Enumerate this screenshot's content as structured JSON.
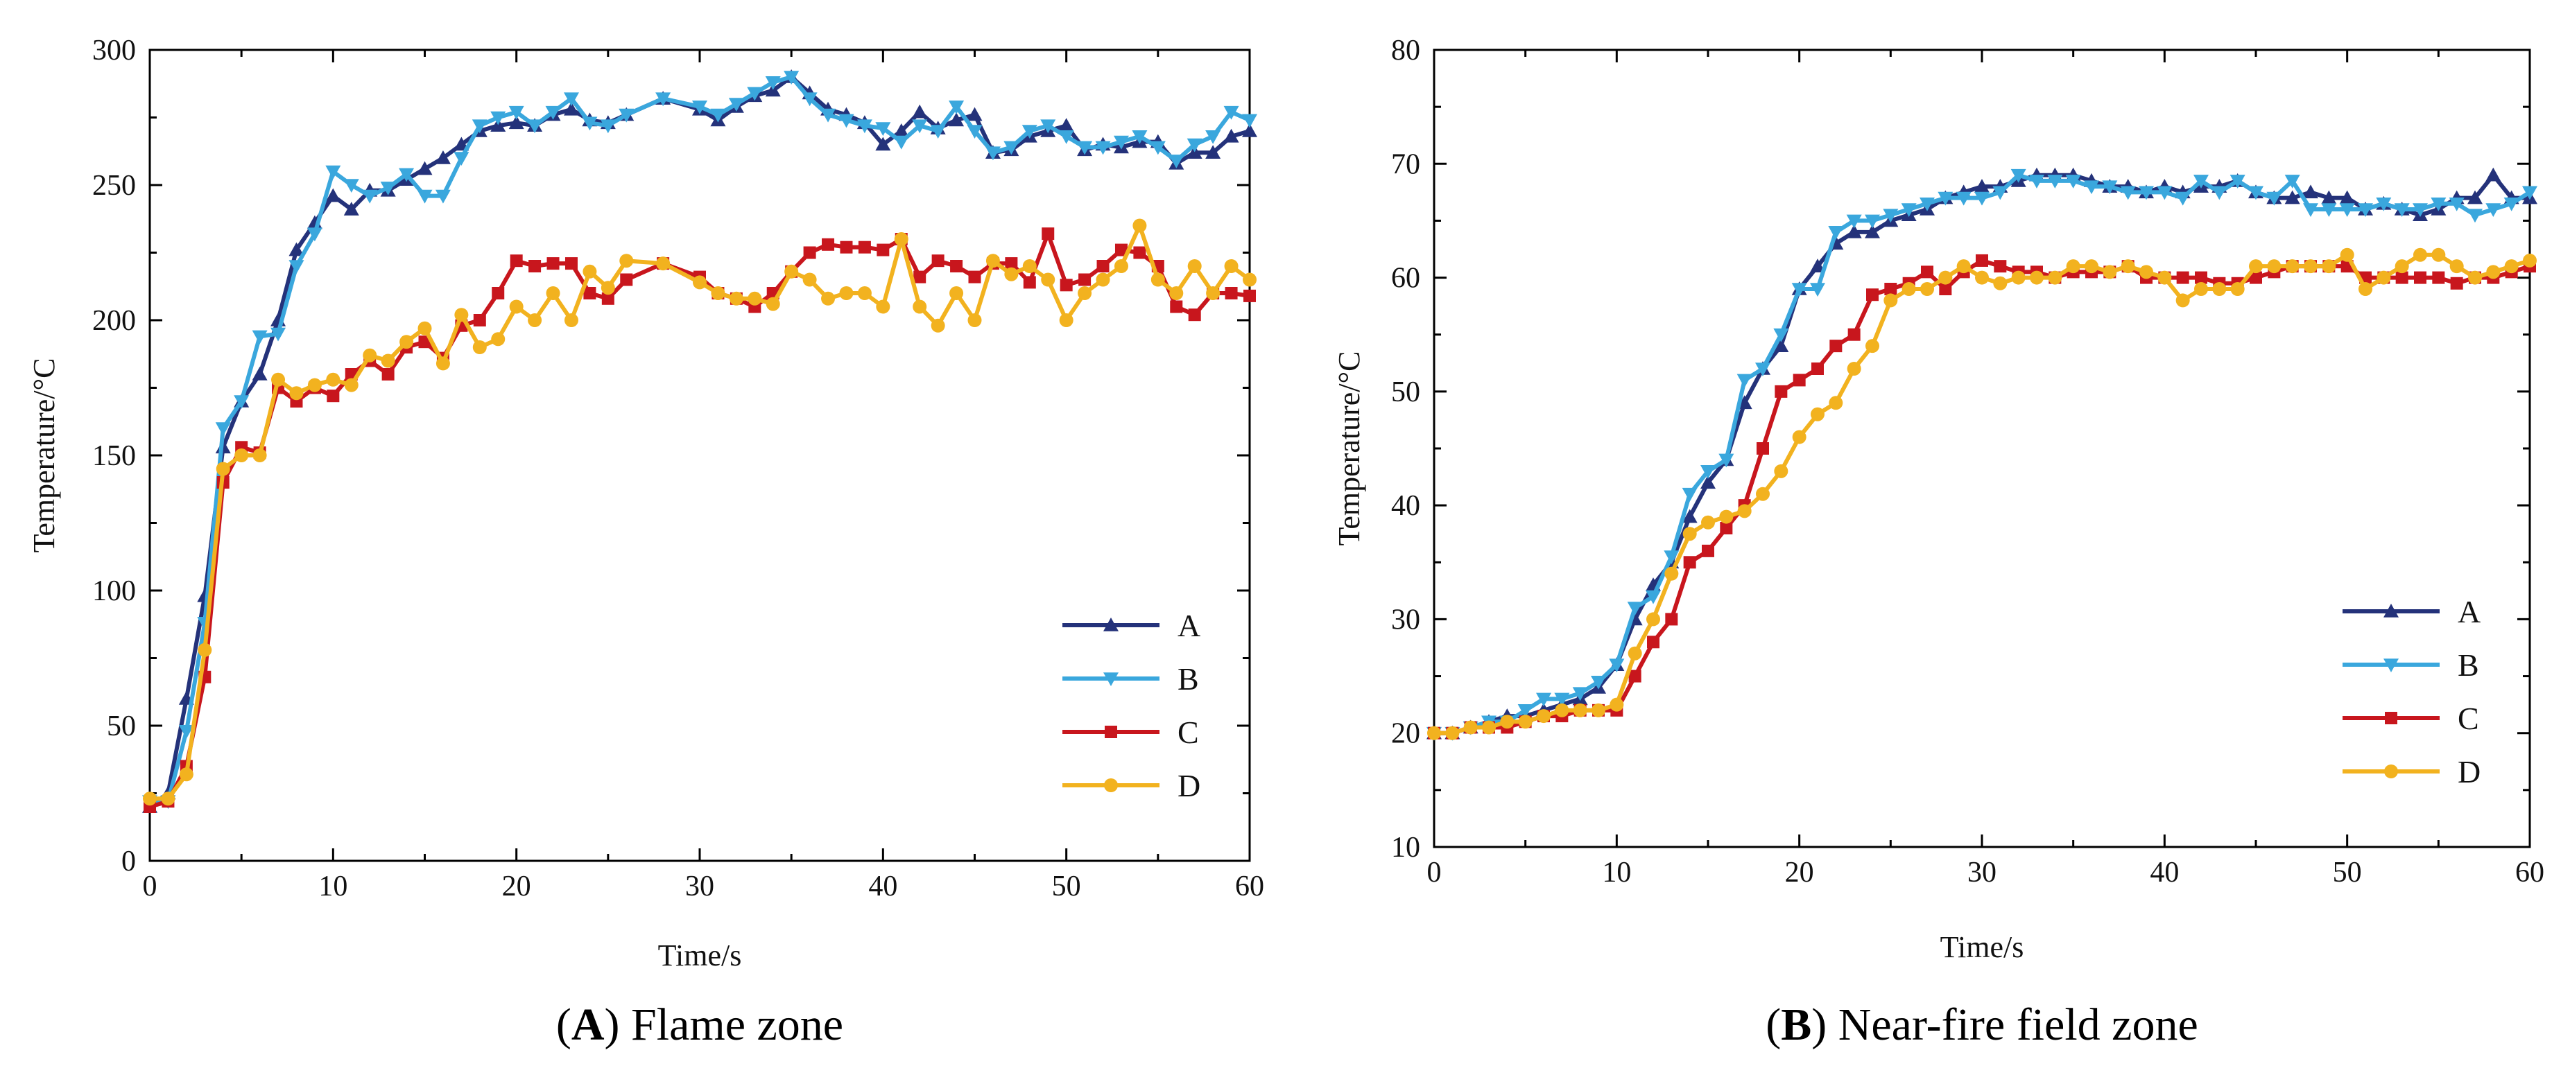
{
  "chart_data": [
    {
      "type": "line",
      "caption_letter": "A",
      "caption_text": ") Flame zone",
      "xlabel": "Time/s",
      "ylabel": "Temperature/°C",
      "xlim": [
        0,
        60
      ],
      "ylim": [
        0,
        300
      ],
      "xticks": [
        0,
        10,
        20,
        30,
        40,
        50,
        60
      ],
      "yticks": [
        0,
        50,
        100,
        150,
        200,
        250,
        300
      ],
      "legend_position": "bottom-right",
      "series": [
        {
          "name": "A",
          "color": "#24327a",
          "marker": "triangle-up",
          "x": [
            0,
            1,
            2,
            3,
            4,
            5,
            6,
            7,
            8,
            9,
            10,
            11,
            12,
            13,
            14,
            15,
            16,
            17,
            18,
            19,
            20,
            21,
            22,
            23,
            24,
            25,
            26,
            28,
            30,
            31,
            32,
            33,
            34,
            35,
            36,
            37,
            38,
            39,
            40,
            41,
            42,
            43,
            44,
            45,
            46,
            47,
            48,
            49,
            50,
            51,
            52,
            53,
            54,
            55,
            56,
            57,
            58,
            59,
            60
          ],
          "y": [
            20,
            25,
            60,
            98,
            153,
            170,
            180,
            200,
            226,
            236,
            246,
            241,
            248,
            248,
            252,
            256,
            260,
            265,
            270,
            272,
            273,
            272,
            276,
            278,
            274,
            273,
            276,
            282,
            278,
            274,
            279,
            283,
            285,
            290,
            284,
            278,
            276,
            273,
            265,
            270,
            277,
            271,
            274,
            276,
            262,
            263,
            268,
            270,
            272,
            263,
            265,
            264,
            266,
            266,
            258,
            262,
            262,
            268,
            270
          ]
        },
        {
          "name": "B",
          "color": "#3aa7dd",
          "marker": "triangle-down",
          "x": [
            0,
            1,
            2,
            3,
            4,
            5,
            6,
            7,
            8,
            9,
            10,
            11,
            12,
            13,
            14,
            15,
            16,
            17,
            18,
            19,
            20,
            21,
            22,
            23,
            24,
            25,
            26,
            28,
            30,
            31,
            32,
            33,
            34,
            35,
            36,
            37,
            38,
            39,
            40,
            41,
            42,
            43,
            44,
            45,
            46,
            47,
            48,
            49,
            50,
            51,
            52,
            53,
            54,
            55,
            56,
            57,
            58,
            59,
            60
          ],
          "y": [
            22,
            22,
            48,
            88,
            160,
            170,
            194,
            195,
            220,
            232,
            255,
            250,
            246,
            249,
            254,
            246,
            246,
            260,
            272,
            275,
            277,
            272,
            277,
            282,
            273,
            272,
            276,
            282,
            279,
            276,
            280,
            284,
            288,
            290,
            282,
            276,
            274,
            272,
            271,
            266,
            272,
            270,
            279,
            270,
            262,
            264,
            270,
            272,
            268,
            264,
            264,
            266,
            268,
            264,
            259,
            265,
            268,
            277,
            274
          ]
        },
        {
          "name": "C",
          "color": "#c8161d",
          "marker": "square",
          "x": [
            0,
            1,
            2,
            3,
            4,
            5,
            6,
            7,
            8,
            9,
            10,
            11,
            12,
            13,
            14,
            15,
            16,
            17,
            18,
            19,
            20,
            21,
            22,
            23,
            24,
            25,
            26,
            28,
            30,
            31,
            32,
            33,
            34,
            35,
            36,
            37,
            38,
            39,
            40,
            41,
            42,
            43,
            44,
            45,
            46,
            47,
            48,
            49,
            50,
            51,
            52,
            53,
            54,
            55,
            56,
            57,
            58,
            59,
            60
          ],
          "y": [
            20,
            22,
            35,
            68,
            140,
            153,
            151,
            175,
            170,
            175,
            172,
            180,
            185,
            180,
            190,
            192,
            186,
            198,
            200,
            210,
            222,
            220,
            221,
            221,
            210,
            208,
            215,
            221,
            216,
            210,
            208,
            205,
            210,
            218,
            225,
            228,
            227,
            227,
            226,
            230,
            216,
            222,
            220,
            216,
            221,
            221,
            214,
            232,
            213,
            215,
            220,
            226,
            225,
            220,
            205,
            202,
            210,
            210,
            209
          ]
        },
        {
          "name": "D",
          "color": "#f2b21f",
          "marker": "circle",
          "x": [
            0,
            1,
            2,
            3,
            4,
            5,
            6,
            7,
            8,
            9,
            10,
            11,
            12,
            13,
            14,
            15,
            16,
            17,
            18,
            19,
            20,
            21,
            22,
            23,
            24,
            25,
            26,
            28,
            30,
            31,
            32,
            33,
            34,
            35,
            36,
            37,
            38,
            39,
            40,
            41,
            42,
            43,
            44,
            45,
            46,
            47,
            48,
            49,
            50,
            51,
            52,
            53,
            54,
            55,
            56,
            57,
            58,
            59,
            60
          ],
          "y": [
            23,
            23,
            32,
            78,
            145,
            150,
            150,
            178,
            173,
            176,
            178,
            176,
            187,
            185,
            192,
            197,
            184,
            202,
            190,
            193,
            205,
            200,
            210,
            200,
            218,
            212,
            222,
            221,
            214,
            210,
            208,
            208,
            206,
            218,
            215,
            208,
            210,
            210,
            205,
            230,
            205,
            198,
            210,
            200,
            222,
            217,
            220,
            215,
            200,
            210,
            215,
            220,
            235,
            215,
            210,
            220,
            210,
            220,
            215
          ]
        }
      ]
    },
    {
      "type": "line",
      "caption_letter": "B",
      "caption_text": ") Near-fire field zone",
      "xlabel": "Time/s",
      "ylabel": "Temperature/°C",
      "xlim": [
        0,
        60
      ],
      "ylim": [
        10,
        80
      ],
      "xticks": [
        0,
        10,
        20,
        30,
        40,
        50,
        60
      ],
      "yticks": [
        10,
        20,
        30,
        40,
        50,
        60,
        70,
        80
      ],
      "legend_position": "bottom-right",
      "series": [
        {
          "name": "A",
          "color": "#24327a",
          "marker": "triangle-up",
          "x": [
            0,
            1,
            2,
            3,
            4,
            5,
            6,
            7,
            8,
            9,
            10,
            11,
            12,
            13,
            14,
            15,
            16,
            17,
            18,
            19,
            20,
            21,
            22,
            23,
            24,
            25,
            26,
            27,
            28,
            29,
            30,
            31,
            32,
            33,
            34,
            35,
            36,
            37,
            38,
            39,
            40,
            41,
            42,
            43,
            44,
            45,
            46,
            47,
            48,
            49,
            50,
            51,
            52,
            53,
            54,
            55,
            56,
            57,
            58,
            59,
            60
          ],
          "y": [
            20,
            20,
            20.5,
            21,
            21.5,
            21.5,
            22,
            22.5,
            23,
            24,
            26,
            30,
            33,
            35,
            39,
            42,
            44,
            49,
            52,
            54,
            59,
            61,
            63,
            64,
            64,
            65,
            65.5,
            66,
            67,
            67.5,
            68,
            68,
            68.5,
            69,
            69,
            69,
            68.5,
            68,
            68,
            67.5,
            68,
            67.5,
            68,
            68,
            68.5,
            67.5,
            67,
            67,
            67.5,
            67,
            67,
            66,
            66.5,
            66,
            65.5,
            66,
            67,
            67,
            69,
            67,
            67
          ]
        },
        {
          "name": "B",
          "color": "#3aa7dd",
          "marker": "triangle-down",
          "x": [
            0,
            1,
            2,
            3,
            4,
            5,
            6,
            7,
            8,
            9,
            10,
            11,
            12,
            13,
            14,
            15,
            16,
            17,
            18,
            19,
            20,
            21,
            22,
            23,
            24,
            25,
            26,
            27,
            28,
            29,
            30,
            31,
            32,
            33,
            34,
            35,
            36,
            37,
            38,
            39,
            40,
            41,
            42,
            43,
            44,
            45,
            46,
            47,
            48,
            49,
            50,
            51,
            52,
            53,
            54,
            55,
            56,
            57,
            58,
            59,
            60
          ],
          "y": [
            20,
            20,
            20.5,
            21,
            21,
            22,
            23,
            23,
            23.5,
            24.5,
            26,
            31,
            32,
            35.5,
            41,
            43,
            44,
            51,
            52,
            55,
            59,
            59,
            64,
            65,
            65,
            65.5,
            66,
            66.5,
            67,
            67,
            67,
            67.5,
            69,
            68.5,
            68.5,
            68.5,
            68,
            68,
            67.5,
            67.5,
            67.5,
            67,
            68.5,
            67.5,
            68.5,
            67.5,
            67,
            68.5,
            66,
            66,
            66,
            66,
            66.5,
            66,
            66,
            66.5,
            66.5,
            65.5,
            66,
            66.5,
            67.5
          ]
        },
        {
          "name": "C",
          "color": "#c8161d",
          "marker": "square",
          "x": [
            0,
            1,
            2,
            3,
            4,
            5,
            6,
            7,
            8,
            9,
            10,
            11,
            12,
            13,
            14,
            15,
            16,
            17,
            18,
            19,
            20,
            21,
            22,
            23,
            24,
            25,
            26,
            27,
            28,
            29,
            30,
            31,
            32,
            33,
            34,
            35,
            36,
            37,
            38,
            39,
            40,
            41,
            42,
            43,
            44,
            45,
            46,
            47,
            48,
            49,
            50,
            51,
            52,
            53,
            54,
            55,
            56,
            57,
            58,
            59,
            60
          ],
          "y": [
            20,
            20,
            20.5,
            20.5,
            20.5,
            21,
            21.5,
            21.5,
            22,
            22,
            22,
            25,
            28,
            30,
            35,
            36,
            38,
            40,
            45,
            50,
            51,
            52,
            54,
            55,
            58.5,
            59,
            59.5,
            60.5,
            59,
            60.5,
            61.5,
            61,
            60.5,
            60.5,
            60,
            60.5,
            60.5,
            60.5,
            61,
            60,
            60,
            60,
            60,
            59.5,
            59.5,
            60,
            60.5,
            61,
            61,
            61,
            61,
            60,
            60,
            60,
            60,
            60,
            59.5,
            60,
            60,
            60.5,
            61
          ]
        },
        {
          "name": "D",
          "color": "#f2b21f",
          "marker": "circle",
          "x": [
            0,
            1,
            2,
            3,
            4,
            5,
            6,
            7,
            8,
            9,
            10,
            11,
            12,
            13,
            14,
            15,
            16,
            17,
            18,
            19,
            20,
            21,
            22,
            23,
            24,
            25,
            26,
            27,
            28,
            29,
            30,
            31,
            32,
            33,
            34,
            35,
            36,
            37,
            38,
            39,
            40,
            41,
            42,
            43,
            44,
            45,
            46,
            47,
            48,
            49,
            50,
            51,
            52,
            53,
            54,
            55,
            56,
            57,
            58,
            59,
            60
          ],
          "y": [
            20,
            20,
            20.5,
            20.5,
            21,
            21,
            21.5,
            22,
            22,
            22,
            22.5,
            27,
            30,
            34,
            37.5,
            38.5,
            39,
            39.5,
            41,
            43,
            46,
            48,
            49,
            52,
            54,
            58,
            59,
            59,
            60,
            61,
            60,
            59.5,
            60,
            60,
            60,
            61,
            61,
            60.5,
            61,
            60.5,
            60,
            58,
            59,
            59,
            59,
            61,
            61,
            61,
            61,
            61,
            62,
            59,
            60,
            61,
            62,
            62,
            61,
            60,
            60.5,
            61,
            61.5
          ]
        }
      ]
    }
  ]
}
